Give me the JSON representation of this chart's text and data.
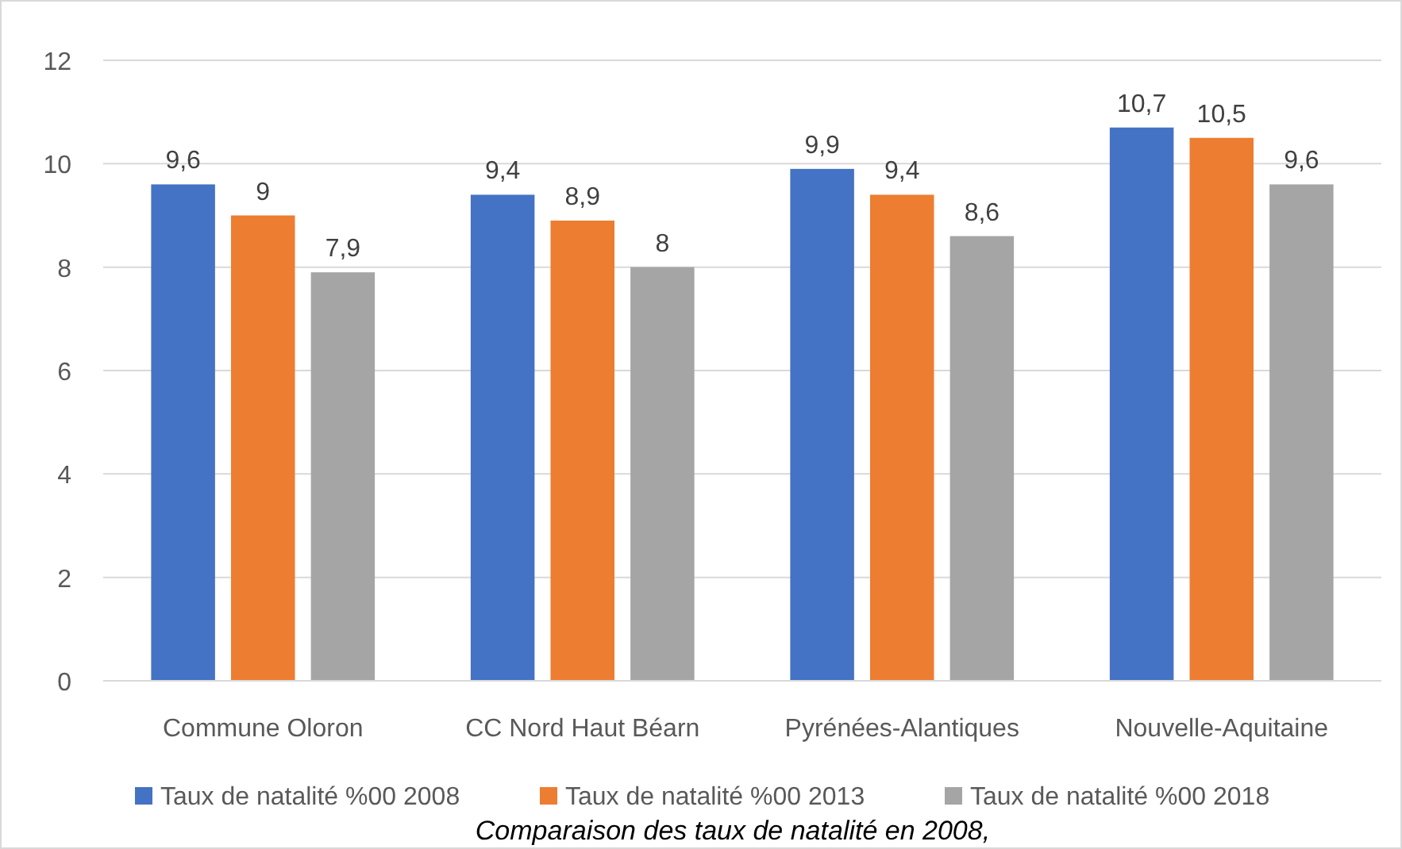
{
  "chart_data": {
    "type": "bar",
    "categories": [
      "Commune Oloron",
      "CC Nord Haut Béarn",
      "Pyrénées-Alantiques",
      "Nouvelle-Aquitaine"
    ],
    "series": [
      {
        "name": "Taux de natalité %00 2008",
        "color": "#4472c4",
        "values": [
          9.6,
          9.4,
          9.9,
          10.7
        ],
        "value_labels": [
          "9,6",
          "9,4",
          "9,9",
          "10,7"
        ]
      },
      {
        "name": "Taux de natalité %00 2013",
        "color": "#ed7d31",
        "values": [
          9,
          8.9,
          9.4,
          10.5
        ],
        "value_labels": [
          "9",
          "8,9",
          "9,4",
          "10,5"
        ]
      },
      {
        "name": "Taux de natalité %00 2018",
        "color": "#a5a5a5",
        "values": [
          7.9,
          8,
          8.6,
          9.6
        ],
        "value_labels": [
          "7,9",
          "8",
          "8,6",
          "9,6"
        ]
      }
    ],
    "ylim": [
      0,
      12
    ],
    "yticks": [
      0,
      2,
      4,
      6,
      8,
      10,
      12
    ],
    "grid": "y",
    "legend": "bottom",
    "annotations": [
      "Comparaison des taux de natalité en 2008,"
    ]
  }
}
